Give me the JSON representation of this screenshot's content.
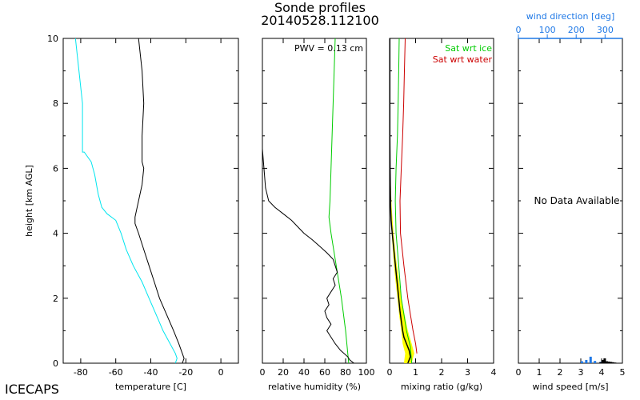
{
  "title": "Sonde profiles",
  "subtitle": "20140528.112100",
  "brand": "ICECAPS",
  "colors": {
    "axis": "#000000",
    "temperature": "#000000",
    "dewpoint": "#00e5ee",
    "rh": "#000000",
    "rh_sat_ice": "#00cc00",
    "mixing_ratio": "#000000",
    "mixing_ratio_range": "#ffff00",
    "sat_ice": "#00cc00",
    "sat_water": "#cc0000",
    "wind_direction": "#1e78e6",
    "wind_speed": "#000000"
  },
  "chart_data": [
    {
      "type": "line",
      "panel": "temperature",
      "xlabel": "temperature [C]",
      "ylabel": "height [km AGL]",
      "xlim": [
        -90,
        10
      ],
      "ylim": [
        0,
        10
      ],
      "xticks": [
        -80,
        -60,
        -40,
        -20,
        0
      ],
      "yticks": [
        0,
        2,
        4,
        6,
        8,
        10
      ],
      "series": [
        {
          "role": "temperature",
          "points": [
            [
              -22,
              0
            ],
            [
              -21,
              0.15
            ],
            [
              -22,
              0.3
            ],
            [
              -24,
              0.6
            ],
            [
              -27,
              1.0
            ],
            [
              -31,
              1.5
            ],
            [
              -35,
              2.0
            ],
            [
              -38,
              2.5
            ],
            [
              -41,
              3.0
            ],
            [
              -44,
              3.5
            ],
            [
              -47,
              4.0
            ],
            [
              -49,
              4.3
            ],
            [
              -49,
              4.5
            ],
            [
              -47,
              5.0
            ],
            [
              -45,
              5.5
            ],
            [
              -44,
              6.0
            ],
            [
              -45,
              6.2
            ],
            [
              -45,
              7.0
            ],
            [
              -44,
              8.0
            ],
            [
              -45,
              9.0
            ],
            [
              -46,
              9.5
            ],
            [
              -47,
              10.0
            ]
          ]
        },
        {
          "role": "dewpoint",
          "points": [
            [
              -26,
              0
            ],
            [
              -25,
              0.15
            ],
            [
              -26,
              0.3
            ],
            [
              -29,
              0.6
            ],
            [
              -33,
              1.0
            ],
            [
              -37,
              1.5
            ],
            [
              -41,
              2.0
            ],
            [
              -45,
              2.5
            ],
            [
              -50,
              3.0
            ],
            [
              -54,
              3.5
            ],
            [
              -57,
              4.0
            ],
            [
              -60,
              4.4
            ],
            [
              -65,
              4.6
            ],
            [
              -68,
              4.8
            ],
            [
              -70,
              5.2
            ],
            [
              -72,
              5.8
            ],
            [
              -74,
              6.2
            ],
            [
              -78,
              6.5
            ],
            [
              -79,
              6.5
            ],
            [
              -79,
              7.0
            ],
            [
              -79,
              7.5
            ],
            [
              -79,
              8.0
            ],
            [
              -80,
              8.5
            ],
            [
              -81,
              9.0
            ],
            [
              -82,
              9.5
            ],
            [
              -83,
              10.0
            ]
          ]
        }
      ]
    },
    {
      "type": "line",
      "panel": "relative-humidity",
      "xlabel": "relative humidity (%)",
      "xlim": [
        0,
        100
      ],
      "ylim": [
        0,
        10
      ],
      "xticks": [
        0,
        20,
        40,
        60,
        80,
        100
      ],
      "annotation": "PWV = 0.13 cm",
      "series": [
        {
          "role": "rh",
          "points": [
            [
              88,
              0
            ],
            [
              84,
              0.1
            ],
            [
              82,
              0.2
            ],
            [
              75,
              0.4
            ],
            [
              70,
              0.6
            ],
            [
              66,
              0.8
            ],
            [
              62,
              1.0
            ],
            [
              66,
              1.2
            ],
            [
              62,
              1.4
            ],
            [
              60,
              1.6
            ],
            [
              64,
              1.8
            ],
            [
              62,
              2.0
            ],
            [
              66,
              2.2
            ],
            [
              70,
              2.4
            ],
            [
              68,
              2.6
            ],
            [
              72,
              2.8
            ],
            [
              70,
              3.0
            ],
            [
              68,
              3.2
            ],
            [
              62,
              3.4
            ],
            [
              55,
              3.6
            ],
            [
              48,
              3.8
            ],
            [
              40,
              4.0
            ],
            [
              34,
              4.2
            ],
            [
              28,
              4.4
            ],
            [
              20,
              4.6
            ],
            [
              12,
              4.8
            ],
            [
              6,
              5.0
            ],
            [
              3,
              5.4
            ],
            [
              2,
              5.8
            ],
            [
              1,
              6.2
            ],
            [
              0,
              6.6
            ],
            [
              0,
              10.0
            ]
          ]
        },
        {
          "role": "rh_sat_ice",
          "points": [
            [
              83,
              0
            ],
            [
              80,
              1.0
            ],
            [
              76,
              2.0
            ],
            [
              71,
              3.0
            ],
            [
              66,
              4.0
            ],
            [
              64,
              4.5
            ],
            [
              65,
              5.0
            ],
            [
              66,
              6.0
            ],
            [
              67,
              7.0
            ],
            [
              68,
              8.0
            ],
            [
              69,
              9.0
            ],
            [
              70,
              10.0
            ]
          ]
        }
      ]
    },
    {
      "type": "line",
      "panel": "mixing-ratio",
      "xlabel": "mixing ratio (g/kg)",
      "xlim": [
        0,
        4
      ],
      "ylim": [
        0,
        10
      ],
      "xticks": [
        0,
        1,
        2,
        3,
        4
      ],
      "legend": [
        "Sat wrt ice",
        "Sat wrt water"
      ],
      "series": [
        {
          "role": "mixing_ratio",
          "points": [
            [
              0.7,
              0
            ],
            [
              0.8,
              0.2
            ],
            [
              0.75,
              0.4
            ],
            [
              0.65,
              0.6
            ],
            [
              0.55,
              0.8
            ],
            [
              0.5,
              1.0
            ],
            [
              0.45,
              1.3
            ],
            [
              0.4,
              1.6
            ],
            [
              0.35,
              2.0
            ],
            [
              0.3,
              2.4
            ],
            [
              0.25,
              2.8
            ],
            [
              0.2,
              3.2
            ],
            [
              0.15,
              3.6
            ],
            [
              0.1,
              4.0
            ],
            [
              0.06,
              4.4
            ],
            [
              0.04,
              4.8
            ],
            [
              0.03,
              5.2
            ],
            [
              0.02,
              6.0
            ],
            [
              0.01,
              7.0
            ],
            [
              0.01,
              10.0
            ]
          ]
        },
        {
          "role": "mixing_ratio_range_low",
          "points": [
            [
              0.55,
              0
            ],
            [
              0.6,
              0.3
            ],
            [
              0.5,
              0.6
            ],
            [
              0.45,
              1.0
            ],
            [
              0.38,
              1.4
            ],
            [
              0.3,
              2.0
            ],
            [
              0.22,
              2.6
            ],
            [
              0.15,
              3.2
            ],
            [
              0.08,
              4.0
            ],
            [
              0.03,
              4.8
            ],
            [
              0.01,
              5.6
            ]
          ]
        },
        {
          "role": "mixing_ratio_range_high",
          "points": [
            [
              0.85,
              0
            ],
            [
              0.95,
              0.3
            ],
            [
              0.85,
              0.6
            ],
            [
              0.7,
              1.0
            ],
            [
              0.6,
              1.4
            ],
            [
              0.45,
              2.0
            ],
            [
              0.35,
              2.6
            ],
            [
              0.25,
              3.2
            ],
            [
              0.15,
              4.0
            ],
            [
              0.08,
              4.8
            ],
            [
              0.04,
              5.6
            ]
          ]
        },
        {
          "role": "sat_ice",
          "points": [
            [
              0.85,
              0
            ],
            [
              0.8,
              0.5
            ],
            [
              0.65,
              1.0
            ],
            [
              0.55,
              1.5
            ],
            [
              0.45,
              2.0
            ],
            [
              0.35,
              3.0
            ],
            [
              0.25,
              4.0
            ],
            [
              0.22,
              5.0
            ],
            [
              0.25,
              6.0
            ],
            [
              0.3,
              7.0
            ],
            [
              0.33,
              8.0
            ],
            [
              0.35,
              9.0
            ],
            [
              0.37,
              10.0
            ]
          ]
        },
        {
          "role": "sat_water",
          "points": [
            [
              1.05,
              0.3
            ],
            [
              1.0,
              0.6
            ],
            [
              0.9,
              1.0
            ],
            [
              0.8,
              1.5
            ],
            [
              0.7,
              2.0
            ],
            [
              0.55,
              3.0
            ],
            [
              0.42,
              4.0
            ],
            [
              0.4,
              5.0
            ],
            [
              0.45,
              6.0
            ],
            [
              0.5,
              7.0
            ],
            [
              0.54,
              8.0
            ],
            [
              0.57,
              9.0
            ],
            [
              0.6,
              10.0
            ]
          ]
        }
      ]
    },
    {
      "type": "bar",
      "panel": "wind",
      "xlabel": "wind speed [m/s]",
      "x2label": "wind direction [deg]",
      "xlim": [
        0,
        5
      ],
      "x2lim": [
        0,
        360
      ],
      "ylim": [
        0,
        10
      ],
      "xticks": [
        0,
        1,
        2,
        3,
        4,
        5
      ],
      "x2ticks": [
        0,
        100,
        200,
        300
      ],
      "message": "No Data Available",
      "speed_histogram": [
        [
          4.05,
          0.1
        ],
        [
          4.15,
          0.15
        ],
        [
          4.25,
          0.06
        ],
        [
          4.35,
          0.05
        ],
        [
          4.45,
          0.04
        ],
        [
          4.55,
          0.03
        ],
        [
          4.65,
          0.02
        ],
        [
          3.95,
          0.03
        ]
      ],
      "direction_histogram": [
        [
          220,
          0.06
        ],
        [
          235,
          0.1
        ],
        [
          250,
          0.2
        ],
        [
          265,
          0.07
        ],
        [
          285,
          0.04
        ]
      ]
    }
  ]
}
